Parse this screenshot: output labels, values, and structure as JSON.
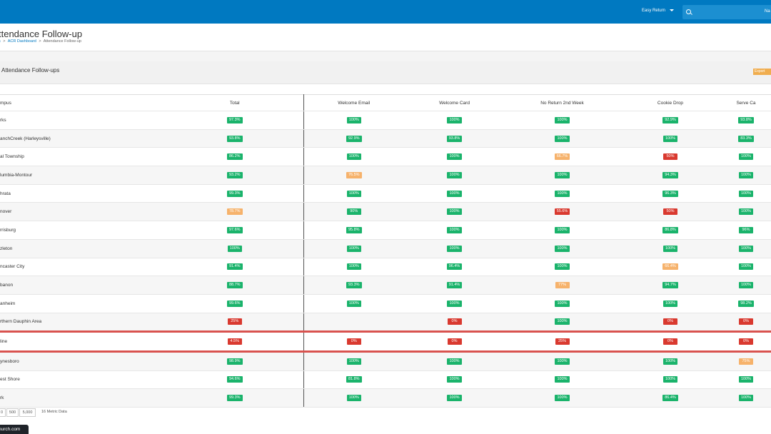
{
  "topbar": {
    "dropdown_label": "Easy Return",
    "search_partial": "Na"
  },
  "header": {
    "title": "ttendance Follow-up",
    "breadcrumbs": {
      "first": "s",
      "second": "ACR Dashboard",
      "current": "Attendance Follow-up",
      "sep": ">"
    }
  },
  "panel": {
    "title": "Attendance Follow-ups",
    "export_label": "Export"
  },
  "table": {
    "headers": [
      "mpus",
      "Total",
      "Welcome Email",
      "Welcome Card",
      "No Return 2nd Week",
      "Cookie Drop",
      "Serve Ca"
    ],
    "rows": [
      {
        "name": "rks",
        "cells": [
          {
            "v": "97.3%",
            "c": "green"
          },
          {
            "v": "100%",
            "c": "green"
          },
          {
            "v": "100%",
            "c": "green"
          },
          {
            "v": "100%",
            "c": "green"
          },
          {
            "v": "92.9%",
            "c": "green"
          },
          {
            "v": "93.8%",
            "c": "green"
          }
        ]
      },
      {
        "name": "anchCreek (Harleysville)",
        "cells": [
          {
            "v": "93.8%",
            "c": "green"
          },
          {
            "v": "92.9%",
            "c": "green"
          },
          {
            "v": "93.8%",
            "c": "green"
          },
          {
            "v": "100%",
            "c": "green"
          },
          {
            "v": "100%",
            "c": "green"
          },
          {
            "v": "83.3%",
            "c": "green"
          }
        ]
      },
      {
        "name": "al Township",
        "cells": [
          {
            "v": "86.2%",
            "c": "green"
          },
          {
            "v": "100%",
            "c": "green"
          },
          {
            "v": "100%",
            "c": "green"
          },
          {
            "v": "66.7%",
            "c": "orange"
          },
          {
            "v": "50%",
            "c": "red"
          },
          {
            "v": "100%",
            "c": "green"
          }
        ]
      },
      {
        "name": "lumbia-Montour",
        "cells": [
          {
            "v": "93.2%",
            "c": "green"
          },
          {
            "v": "76.5%",
            "c": "orange"
          },
          {
            "v": "100%",
            "c": "green"
          },
          {
            "v": "100%",
            "c": "green"
          },
          {
            "v": "94.3%",
            "c": "green"
          },
          {
            "v": "100%",
            "c": "green"
          }
        ]
      },
      {
        "name": "hrata",
        "cells": [
          {
            "v": "99.3%",
            "c": "green"
          },
          {
            "v": "100%",
            "c": "green"
          },
          {
            "v": "100%",
            "c": "green"
          },
          {
            "v": "100%",
            "c": "green"
          },
          {
            "v": "96.3%",
            "c": "green"
          },
          {
            "v": "100%",
            "c": "green"
          }
        ]
      },
      {
        "name": "nover",
        "cells": [
          {
            "v": "78.7%",
            "c": "orange"
          },
          {
            "v": "90%",
            "c": "green"
          },
          {
            "v": "100%",
            "c": "green"
          },
          {
            "v": "55.6%",
            "c": "red"
          },
          {
            "v": "50%",
            "c": "red"
          },
          {
            "v": "100%",
            "c": "green"
          }
        ]
      },
      {
        "name": "rrisburg",
        "cells": [
          {
            "v": "97.6%",
            "c": "green"
          },
          {
            "v": "95.8%",
            "c": "green"
          },
          {
            "v": "100%",
            "c": "green"
          },
          {
            "v": "100%",
            "c": "green"
          },
          {
            "v": "86.8%",
            "c": "green"
          },
          {
            "v": "96%",
            "c": "green"
          }
        ]
      },
      {
        "name": "zleton",
        "cells": [
          {
            "v": "100%",
            "c": "green"
          },
          {
            "v": "100%",
            "c": "green"
          },
          {
            "v": "100%",
            "c": "green"
          },
          {
            "v": "100%",
            "c": "green"
          },
          {
            "v": "100%",
            "c": "green"
          },
          {
            "v": "100%",
            "c": "green"
          }
        ]
      },
      {
        "name": "ncaster City",
        "cells": [
          {
            "v": "91.4%",
            "c": "green"
          },
          {
            "v": "100%",
            "c": "green"
          },
          {
            "v": "96.4%",
            "c": "green"
          },
          {
            "v": "100%",
            "c": "green"
          },
          {
            "v": "66.4%",
            "c": "orange"
          },
          {
            "v": "100%",
            "c": "green"
          }
        ]
      },
      {
        "name": "banon",
        "cells": [
          {
            "v": "88.7%",
            "c": "green"
          },
          {
            "v": "93.3%",
            "c": "green"
          },
          {
            "v": "91.4%",
            "c": "green"
          },
          {
            "v": "77%",
            "c": "orange"
          },
          {
            "v": "94.7%",
            "c": "green"
          },
          {
            "v": "100%",
            "c": "green"
          }
        ]
      },
      {
        "name": "anheim",
        "cells": [
          {
            "v": "99.6%",
            "c": "green"
          },
          {
            "v": "100%",
            "c": "green"
          },
          {
            "v": "100%",
            "c": "green"
          },
          {
            "v": "100%",
            "c": "green"
          },
          {
            "v": "100%",
            "c": "green"
          },
          {
            "v": "98.2%",
            "c": "green"
          }
        ]
      },
      {
        "name": "rthern Dauphin Area",
        "cells": [
          {
            "v": "25%",
            "c": "red"
          },
          {
            "v": "",
            "c": "none"
          },
          {
            "v": "0%",
            "c": "red"
          },
          {
            "v": "100%",
            "c": "green"
          },
          {
            "v": "0%",
            "c": "red"
          },
          {
            "v": "0%",
            "c": "red"
          }
        ]
      },
      {
        "name": "line",
        "highlight": true,
        "cells": [
          {
            "v": "4.5%",
            "c": "red"
          },
          {
            "v": "0%",
            "c": "red"
          },
          {
            "v": "0%",
            "c": "red"
          },
          {
            "v": "25%",
            "c": "red"
          },
          {
            "v": "0%",
            "c": "red"
          },
          {
            "v": "0%",
            "c": "red"
          }
        ]
      },
      {
        "name": "ynesboro",
        "cells": [
          {
            "v": "98.9%",
            "c": "green"
          },
          {
            "v": "100%",
            "c": "green"
          },
          {
            "v": "100%",
            "c": "green"
          },
          {
            "v": "100%",
            "c": "green"
          },
          {
            "v": "100%",
            "c": "green"
          },
          {
            "v": "75%",
            "c": "orange"
          }
        ]
      },
      {
        "name": "est Shore",
        "cells": [
          {
            "v": "94.6%",
            "c": "green"
          },
          {
            "v": "81.8%",
            "c": "green"
          },
          {
            "v": "100%",
            "c": "green"
          },
          {
            "v": "100%",
            "c": "green"
          },
          {
            "v": "100%",
            "c": "green"
          },
          {
            "v": "100%",
            "c": "green"
          }
        ]
      },
      {
        "name": "rk",
        "cells": [
          {
            "v": "99.3%",
            "c": "green"
          },
          {
            "v": "100%",
            "c": "green"
          },
          {
            "v": "100%",
            "c": "green"
          },
          {
            "v": "100%",
            "c": "green"
          },
          {
            "v": "86.4%",
            "c": "green"
          },
          {
            "v": "100%",
            "c": "green"
          }
        ]
      }
    ]
  },
  "pager": {
    "sizes": [
      "0",
      "500",
      "5,000"
    ],
    "info": "16 Metric Data"
  },
  "tooltip": {
    "text": "hurch.com"
  },
  "colors": {
    "green": "#1ab36b",
    "orange": "#f6b26b",
    "red": "#d9392f",
    "topbar": "#0079c1"
  }
}
